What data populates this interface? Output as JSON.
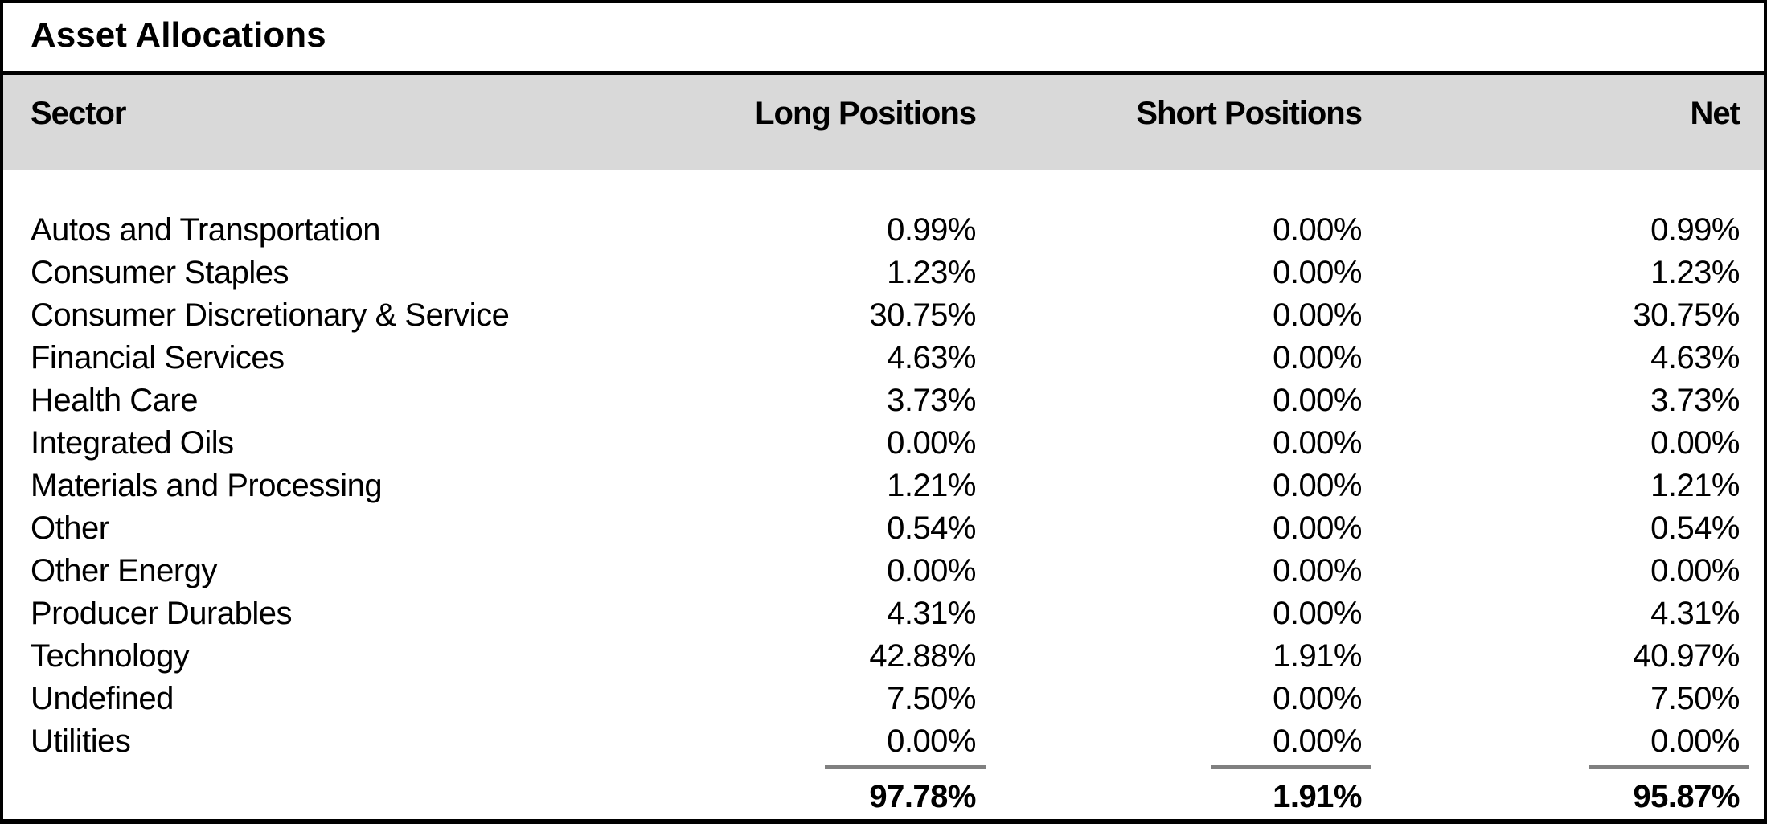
{
  "title": "Asset Allocations",
  "columns": {
    "sector": "Sector",
    "long": "Long Positions",
    "short": "Short Positions",
    "net": "Net"
  },
  "rows": [
    {
      "sector": "Autos and Transportation",
      "long": "0.99%",
      "short": "0.00%",
      "net": "0.99%"
    },
    {
      "sector": "Consumer Staples",
      "long": "1.23%",
      "short": "0.00%",
      "net": "1.23%"
    },
    {
      "sector": "Consumer Discretionary & Service",
      "long": "30.75%",
      "short": "0.00%",
      "net": "30.75%"
    },
    {
      "sector": "Financial Services",
      "long": "4.63%",
      "short": "0.00%",
      "net": "4.63%"
    },
    {
      "sector": "Health Care",
      "long": "3.73%",
      "short": "0.00%",
      "net": "3.73%"
    },
    {
      "sector": "Integrated Oils",
      "long": "0.00%",
      "short": "0.00%",
      "net": "0.00%"
    },
    {
      "sector": "Materials and Processing",
      "long": "1.21%",
      "short": "0.00%",
      "net": "1.21%"
    },
    {
      "sector": "Other",
      "long": "0.54%",
      "short": "0.00%",
      "net": "0.54%"
    },
    {
      "sector": "Other Energy",
      "long": "0.00%",
      "short": "0.00%",
      "net": "0.00%"
    },
    {
      "sector": "Producer Durables",
      "long": "4.31%",
      "short": "0.00%",
      "net": "4.31%"
    },
    {
      "sector": "Technology",
      "long": "42.88%",
      "short": "1.91%",
      "net": "40.97%"
    },
    {
      "sector": "Undefined",
      "long": "7.50%",
      "short": "0.00%",
      "net": "7.50%"
    },
    {
      "sector": "Utilities",
      "long": "0.00%",
      "short": "0.00%",
      "net": "0.00%"
    }
  ],
  "totals": {
    "long": "97.78%",
    "short": "1.91%",
    "net": "95.87%"
  },
  "colors": {
    "header_band": "#d9d9d9",
    "sum_line": "#808080",
    "border": "#000000",
    "text": "#000000"
  }
}
